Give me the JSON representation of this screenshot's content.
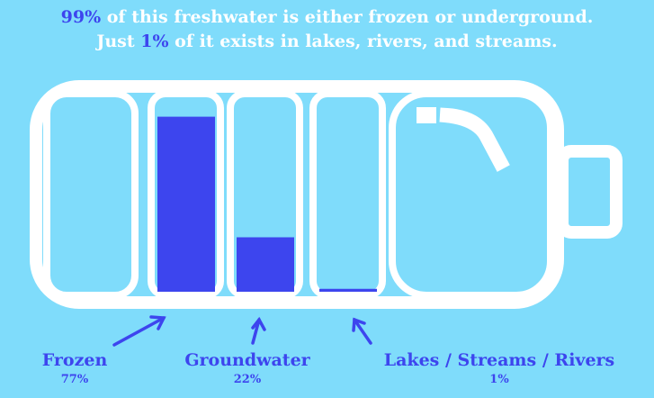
{
  "headline": {
    "line1_highlight": "99%",
    "line1_rest": " of this freshwater is either frozen or underground.",
    "line2_prefix": "Just ",
    "line2_highlight": "1%",
    "line2_rest": " of it exists in lakes, rivers, and streams."
  },
  "colors": {
    "background": "#7fdcfb",
    "outline": "#ffffff",
    "fill": "#3d45ee"
  },
  "compartments": [
    {
      "name": "Frozen",
      "percent_label": "77%",
      "fill_fraction": 0.9
    },
    {
      "name": "Groundwater",
      "percent_label": "22%",
      "fill_fraction": 0.28
    },
    {
      "name": "Lakes / Streams / Rivers",
      "percent_label": "1%",
      "fill_fraction": 0.015
    }
  ]
}
